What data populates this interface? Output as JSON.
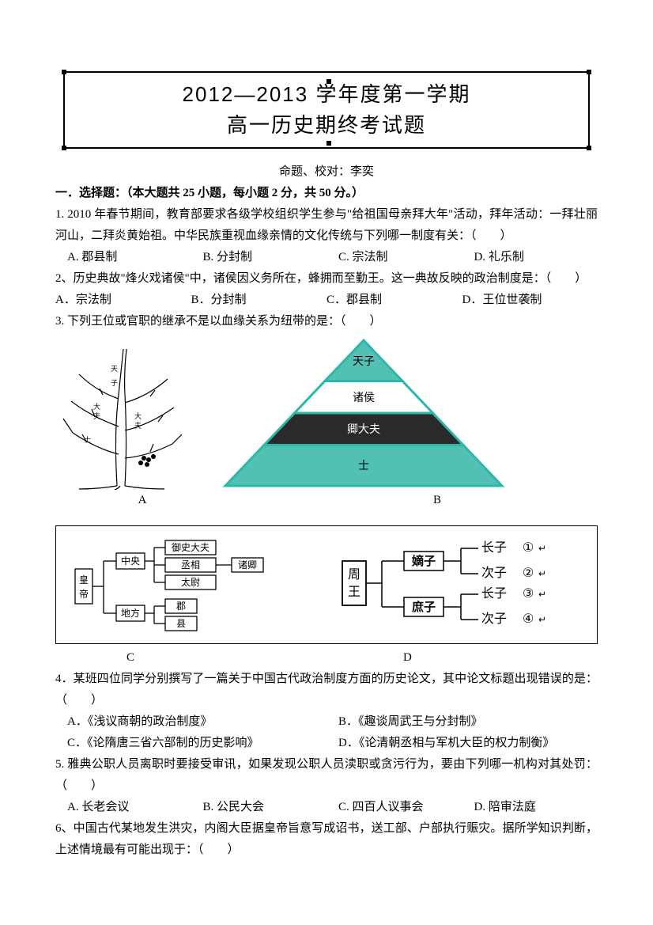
{
  "title": {
    "line1": "2012—2013 学年度第一学期",
    "line2": "高一历史期终考试题",
    "title_fontsize": 26,
    "border_color": "#000000"
  },
  "author_line": "命题、校对：李奕",
  "section1": {
    "heading": "一．选择题：（本大题共 25 小题，每小题 2 分，共 50 分。）"
  },
  "q1": {
    "text": "1. 2010 年春节期间，教育部要求各级学校组织学生参与\"给祖国母亲拜大年\"活动，拜年活动：一拜壮丽河山，二拜炎黄始祖。中华民族重视血缘亲情的文化传统与下列哪一制度有关：（　　）",
    "options": [
      "A. 郡县制",
      "B. 分封制",
      "C. 宗法制",
      "D. 礼乐制"
    ]
  },
  "q2": {
    "text": "2、历史典故\"烽火戏诸侯\"中，诸侯因义务所在，蜂拥而至勤王。这一典故反映的政治制度是：（　　）",
    "options": [
      "A．宗法制",
      "B．分封制",
      "C．郡县制",
      "D．王位世袭制"
    ]
  },
  "q3": {
    "text": "3. 下列王位或官职的继承不是以血缘关系为纽带的是：（　　）",
    "figA_label": "A",
    "figB_label": "B",
    "figC_label": "C",
    "figD_label": "D",
    "pyramid": {
      "levels": [
        "天子",
        "诸侯",
        "卿大夫",
        "士"
      ],
      "colors": [
        "#52c1b3",
        "#ffffff",
        "#2a2a2a",
        "#52c1b3"
      ],
      "line_color": "#2bb8a8",
      "text_colors": [
        "#000000",
        "#000000",
        "#ffffff",
        "#000000"
      ]
    },
    "diagramC": {
      "root": "皇帝",
      "branch1": "中央",
      "branch1_children": [
        "御史大夫",
        "丞相",
        "太尉"
      ],
      "branch1_side": "诸卿",
      "branch2": "地方",
      "branch2_children": [
        "郡",
        "县"
      ]
    },
    "diagramD": {
      "root": "周王",
      "children": [
        "嫡子",
        "庶子"
      ],
      "leaves": [
        {
          "label": "长子",
          "num": "①"
        },
        {
          "label": "次子",
          "num": "②"
        },
        {
          "label": "长子",
          "num": "③"
        },
        {
          "label": "次子",
          "num": "④"
        }
      ]
    }
  },
  "q4": {
    "text": "4．某班四位同学分别撰写了一篇关于中国古代政治制度方面的历史论文，其中论文标题出现错误的是：（　　）",
    "options": [
      "A．《浅议商朝的政治制度》",
      "B．《趣谈周武王与分封制》",
      "C．《论隋唐三省六部制的历史影响》",
      "D．《论清朝丞相与军机大臣的权力制衡》"
    ]
  },
  "q5": {
    "text": "5. 雅典公职人员离职时要接受审讯，如果发现公职人员渎职或贪污行为，要由下列哪一机构对其处罚：（　　）",
    "options": [
      "A. 长老会议",
      "B. 公民大会",
      "C. 四百人议事会",
      "D. 陪审法庭"
    ]
  },
  "q6": {
    "text": "6、中国古代某地发生洪灾，内阁大臣据皇帝旨意写成诏书，送工部、户部执行赈灾。据所学知识判断，上述情境最有可能出现于：（　　）"
  },
  "colors": {
    "text": "#000000",
    "background": "#ffffff",
    "teal": "#2bb8a8",
    "dark": "#2a2a2a"
  }
}
